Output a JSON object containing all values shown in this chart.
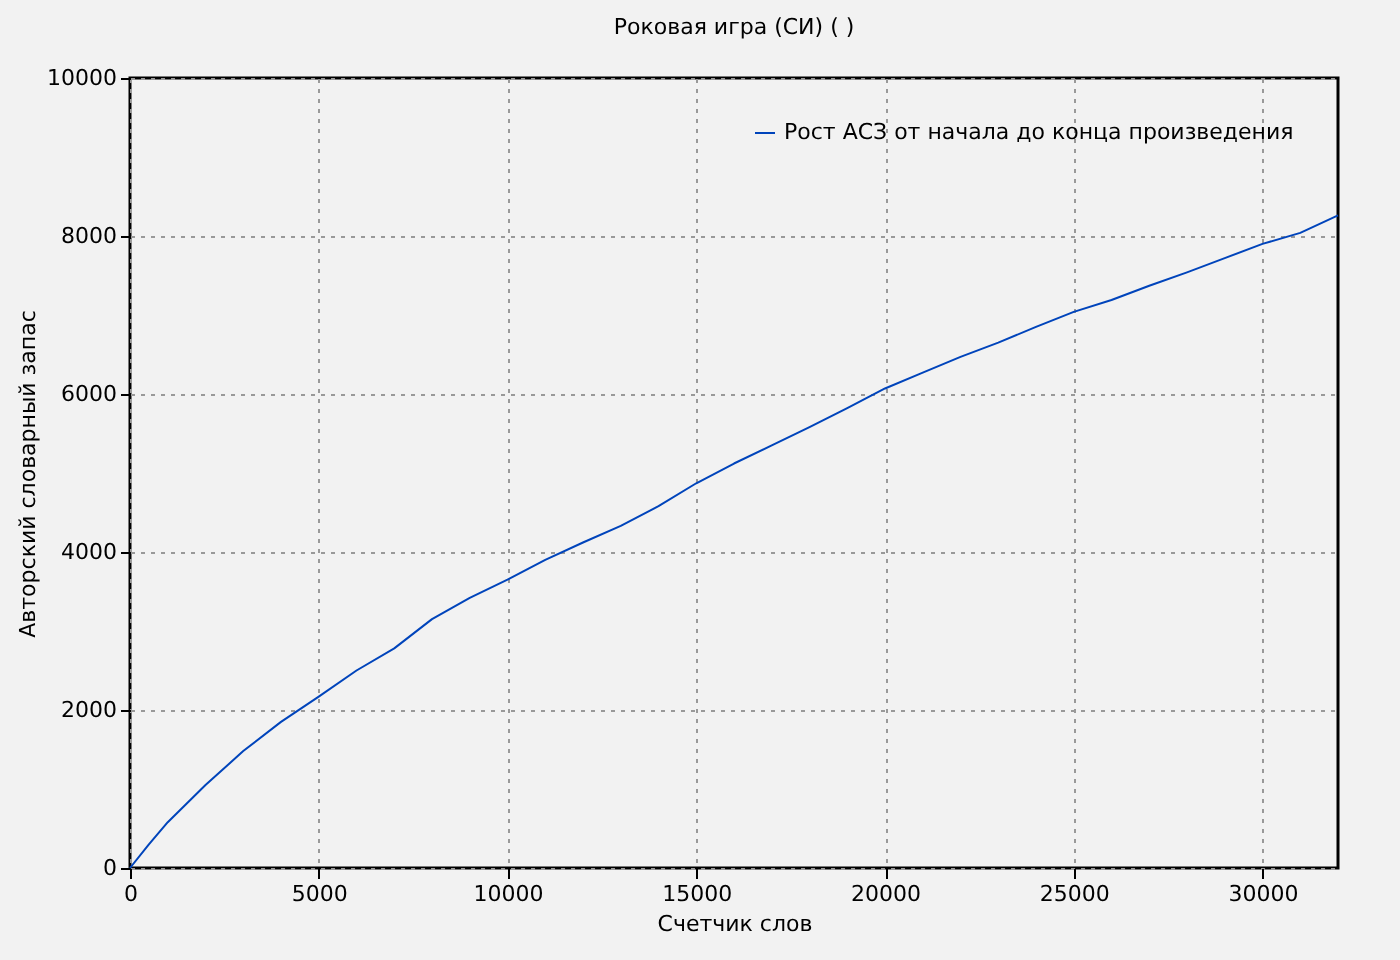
{
  "chart_data": {
    "type": "line",
    "title": "Роковая игра (СИ) ( )",
    "xlabel": "Счетчик слов",
    "ylabel": "Авторский словарный запас",
    "x": [
      0,
      500,
      1000,
      2000,
      3000,
      4000,
      5000,
      6000,
      7000,
      8000,
      9000,
      10000,
      11000,
      12000,
      13000,
      14000,
      15000,
      16000,
      17000,
      18000,
      19000,
      20000,
      21000,
      22000,
      23000,
      24000,
      25000,
      26000,
      27000,
      28000,
      29000,
      30000,
      31000,
      32000
    ],
    "series": [
      {
        "name": "Рост АСЗ от начала до конца произведения",
        "color": "#0044bb",
        "values": [
          0,
          300,
          580,
          1050,
          1480,
          1850,
          2170,
          2500,
          2780,
          3150,
          3420,
          3650,
          3900,
          4120,
          4330,
          4580,
          4870,
          5120,
          5350,
          5580,
          5820,
          6070,
          6270,
          6470,
          6650,
          6850,
          7040,
          7190,
          7370,
          7540,
          7720,
          7900,
          8040,
          8260
        ]
      }
    ],
    "xlim": [
      0,
      32000
    ],
    "xticks": [
      0,
      5000,
      10000,
      15000,
      20000,
      25000,
      30000
    ],
    "ylim": [
      0,
      10000
    ],
    "yticks": [
      0,
      2000,
      4000,
      6000,
      8000,
      10000
    ],
    "grid": true,
    "legend": "top right",
    "line_style": "solid"
  }
}
